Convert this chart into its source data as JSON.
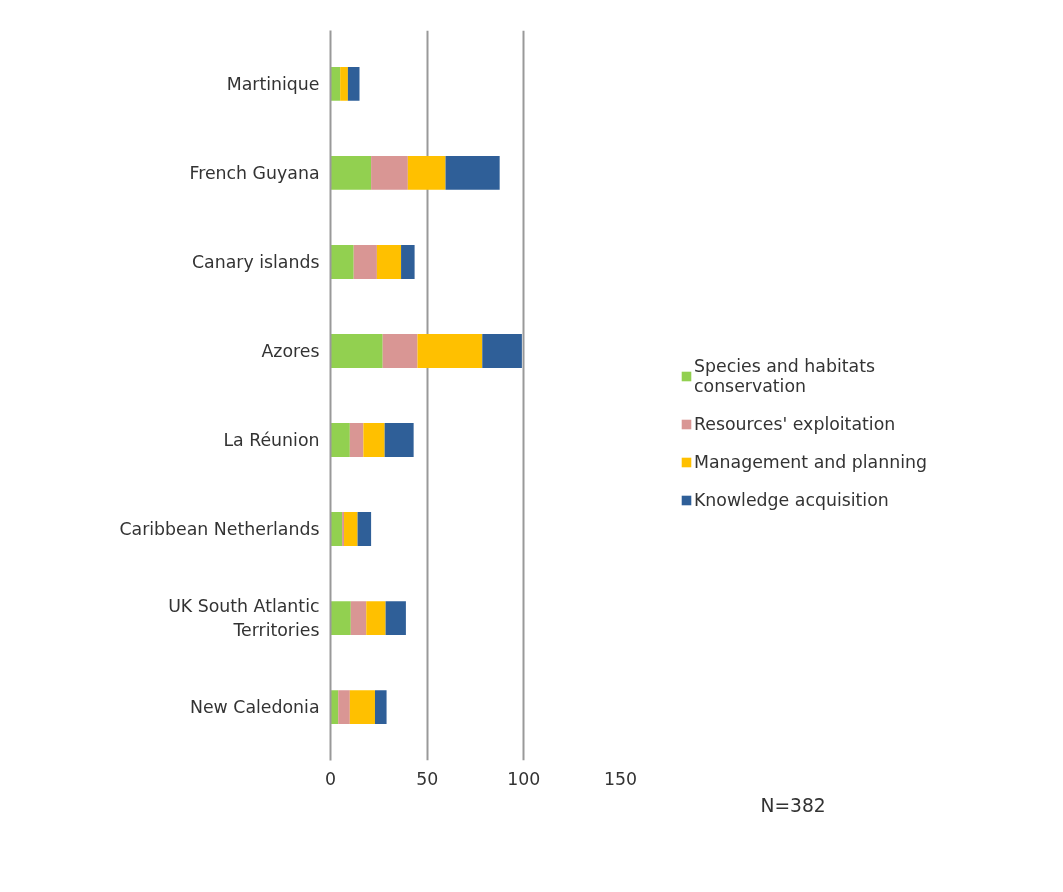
{
  "chart_data": {
    "type": "bar",
    "orientation": "horizontal",
    "stacked": true,
    "categories": [
      "Martinique",
      "French Guyana",
      "Canary islands",
      "Azores",
      "La Réunion",
      "Caribbean Netherlands",
      "UK South Atlantic Territories",
      "New Caledonia"
    ],
    "series": [
      {
        "name": "Species and habitats conservation",
        "color": "#92d050",
        "values": [
          5,
          21,
          12,
          27,
          10,
          6,
          10.5,
          4
        ]
      },
      {
        "name": "Resources' exploitation",
        "color": "#d99694",
        "values": [
          0,
          19,
          12,
          18,
          7,
          1,
          8,
          6
        ]
      },
      {
        "name": "Management and planning",
        "color": "#ffc000",
        "values": [
          4,
          19.5,
          12.5,
          33.5,
          11,
          7,
          10,
          13
        ]
      },
      {
        "name": "Knowledge acquisition",
        "color": "#2f5f98",
        "values": [
          6,
          28,
          7,
          20.5,
          15,
          7,
          10.5,
          6
        ]
      }
    ],
    "xlim": [
      0,
      150
    ],
    "xticks": [
      0,
      50,
      100,
      150
    ],
    "grid": "x",
    "legend": "right",
    "annotations": [
      "N=382"
    ]
  }
}
